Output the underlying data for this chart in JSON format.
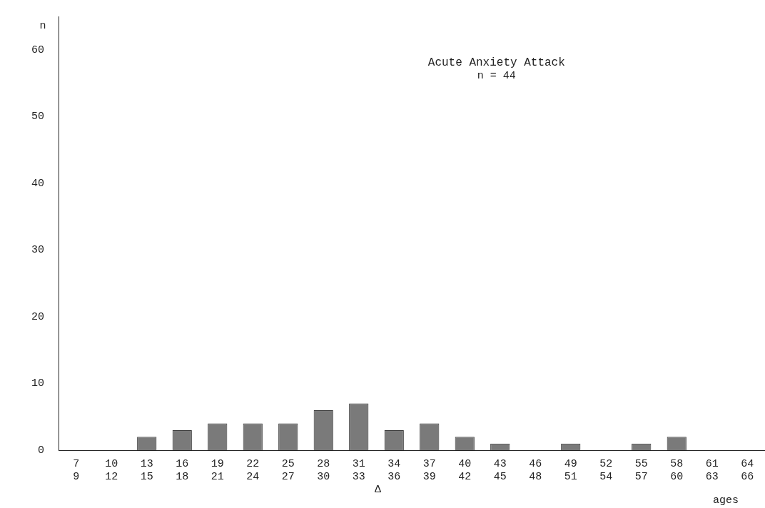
{
  "chart_data": {
    "type": "bar",
    "title": "Acute Anxiety Attack",
    "subtitle": "n = 44",
    "ylabel": "n",
    "xlabel": "ages",
    "categories": [
      "7\n9",
      "10\n12",
      "13\n15",
      "16\n18",
      "19\n21",
      "22\n24",
      "25\n27",
      "28\n30",
      "31\n33",
      "34\n36",
      "37\n39",
      "40\n42",
      "43\n45",
      "46\n48",
      "49\n51",
      "52\n54",
      "55\n57",
      "58\n60",
      "61\n63",
      "64\n66"
    ],
    "values": [
      0,
      0,
      2,
      3,
      4,
      4,
      4,
      6,
      7,
      3,
      4,
      2,
      1,
      0,
      1,
      0,
      1,
      2,
      0,
      0
    ],
    "color": "#7a7a7a",
    "ylim": [
      0,
      65
    ],
    "yticks": [
      0,
      10,
      20,
      30,
      40,
      50,
      60
    ],
    "grid": false,
    "legend": false,
    "annotations": [
      "Δ"
    ]
  }
}
